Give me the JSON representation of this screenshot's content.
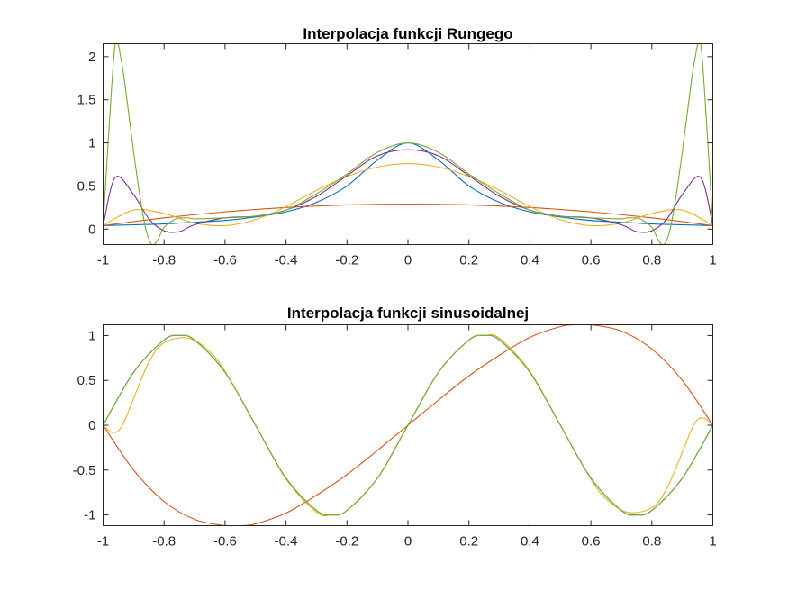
{
  "chart_data": [
    {
      "type": "line",
      "title": "Interpolacja funkcji Rungego",
      "xlabel": "",
      "ylabel": "",
      "xlim": [
        -1,
        1
      ],
      "ylim": [
        -0.18,
        2.15
      ],
      "xticks": [
        -1,
        -0.8,
        -0.6,
        -0.4,
        -0.2,
        0,
        0.2,
        0.4,
        0.6,
        0.8,
        1
      ],
      "xtick_labels": [
        "-1",
        "-0.8",
        "-0.6",
        "-0.4",
        "-0.2",
        "0",
        "0.2",
        "0.4",
        "0.6",
        "0.8",
        "1"
      ],
      "yticks": [
        0,
        0.5,
        1,
        1.5,
        2
      ],
      "ytick_labels": [
        "0",
        "0.5",
        "1",
        "1.5",
        "2"
      ],
      "grid": false,
      "series": [
        {
          "color": "#0072BD",
          "x": [
            -1,
            -0.9,
            -0.8,
            -0.7,
            -0.6,
            -0.5,
            -0.4,
            -0.3,
            -0.2,
            -0.1,
            0,
            0.1,
            0.2,
            0.3,
            0.4,
            0.5,
            0.6,
            0.7,
            0.8,
            0.9,
            1
          ],
          "y": [
            0.04,
            0.05,
            0.06,
            0.08,
            0.1,
            0.14,
            0.2,
            0.31,
            0.5,
            0.8,
            1.0,
            0.8,
            0.5,
            0.31,
            0.2,
            0.14,
            0.1,
            0.08,
            0.06,
            0.05,
            0.04
          ]
        },
        {
          "color": "#D95319",
          "x": [
            -1,
            -0.8,
            -0.6,
            -0.4,
            -0.2,
            0,
            0.2,
            0.4,
            0.6,
            0.8,
            1
          ],
          "y": [
            0.04,
            0.13,
            0.2,
            0.25,
            0.28,
            0.29,
            0.28,
            0.25,
            0.2,
            0.13,
            0.04
          ]
        },
        {
          "color": "#EDB120",
          "x": [
            -1,
            -0.9,
            -0.8,
            -0.7,
            -0.6,
            -0.5,
            -0.4,
            -0.3,
            -0.2,
            -0.1,
            0,
            0.1,
            0.2,
            0.3,
            0.4,
            0.5,
            0.6,
            0.7,
            0.8,
            0.9,
            1
          ],
          "y": [
            0.04,
            0.22,
            0.18,
            0.07,
            0.04,
            0.11,
            0.26,
            0.45,
            0.61,
            0.72,
            0.76,
            0.72,
            0.61,
            0.45,
            0.26,
            0.11,
            0.04,
            0.07,
            0.18,
            0.22,
            0.04
          ]
        },
        {
          "color": "#7E2F8E",
          "x": [
            -1,
            -0.96,
            -0.9,
            -0.85,
            -0.8,
            -0.75,
            -0.7,
            -0.6,
            -0.5,
            -0.4,
            -0.3,
            -0.2,
            -0.1,
            0,
            0.1,
            0.2,
            0.3,
            0.4,
            0.5,
            0.6,
            0.7,
            0.75,
            0.8,
            0.85,
            0.9,
            0.96,
            1
          ],
          "y": [
            0.04,
            0.6,
            0.4,
            0.12,
            -0.02,
            -0.03,
            0.05,
            0.13,
            0.15,
            0.22,
            0.38,
            0.62,
            0.85,
            0.92,
            0.85,
            0.62,
            0.38,
            0.22,
            0.15,
            0.13,
            0.05,
            -0.03,
            -0.02,
            0.12,
            0.4,
            0.6,
            0.04
          ]
        },
        {
          "color": "#77AC30",
          "x": [
            -1,
            -0.98,
            -0.96,
            -0.94,
            -0.92,
            -0.9,
            -0.88,
            -0.86,
            -0.84,
            -0.82,
            -0.8,
            -0.76,
            -0.72,
            -0.7,
            -0.6,
            -0.5,
            -0.4,
            -0.3,
            -0.2,
            -0.1,
            0,
            0.1,
            0.2,
            0.3,
            0.4,
            0.5,
            0.6,
            0.7,
            0.72,
            0.76,
            0.8,
            0.82,
            0.84,
            0.86,
            0.88,
            0.9,
            0.92,
            0.94,
            0.96,
            0.98,
            1
          ],
          "y": [
            0.04,
            1.2,
            2.15,
            1.95,
            1.45,
            0.9,
            0.4,
            0.0,
            -0.18,
            -0.12,
            0.02,
            0.12,
            0.13,
            0.12,
            0.13,
            0.15,
            0.22,
            0.41,
            0.64,
            0.89,
            1.0,
            0.89,
            0.64,
            0.41,
            0.22,
            0.15,
            0.13,
            0.12,
            0.13,
            0.12,
            0.02,
            -0.12,
            -0.18,
            0.0,
            0.4,
            0.9,
            1.45,
            1.95,
            2.15,
            1.2,
            0.04
          ]
        }
      ]
    },
    {
      "type": "line",
      "title": "Interpolacja funkcji sinusoidalnej",
      "xlabel": "",
      "ylabel": "",
      "xlim": [
        -1,
        1
      ],
      "ylim": [
        -1.12,
        1.12
      ],
      "xticks": [
        -1,
        -0.8,
        -0.6,
        -0.4,
        -0.2,
        0,
        0.2,
        0.4,
        0.6,
        0.8,
        1
      ],
      "xtick_labels": [
        "-1",
        "-0.8",
        "-0.6",
        "-0.4",
        "-0.2",
        "0",
        "0.2",
        "0.4",
        "0.6",
        "0.8",
        "1"
      ],
      "yticks": [
        -1,
        -0.5,
        0,
        0.5,
        1
      ],
      "ytick_labels": [
        "-1",
        "-0.5",
        "0",
        "0.5",
        "1"
      ],
      "grid": false,
      "series": [
        {
          "color": "#0072BD",
          "x": [
            -1,
            -0.9,
            -0.8,
            -0.75,
            -0.7,
            -0.6,
            -0.5,
            -0.4,
            -0.3,
            -0.25,
            -0.2,
            -0.1,
            0,
            0.1,
            0.2,
            0.25,
            0.3,
            0.4,
            0.5,
            0.6,
            0.7,
            0.75,
            0.8,
            0.9,
            1
          ],
          "y": [
            0,
            0.59,
            0.95,
            1.0,
            0.95,
            0.59,
            0,
            -0.59,
            -0.95,
            -1.0,
            -0.95,
            -0.59,
            0,
            0.59,
            0.95,
            1.0,
            0.95,
            0.59,
            0,
            -0.59,
            -0.95,
            -1.0,
            -0.95,
            -0.59,
            0
          ]
        },
        {
          "color": "#D95319",
          "x": [
            -1,
            -0.9,
            -0.8,
            -0.7,
            -0.6,
            -0.55,
            -0.5,
            -0.4,
            -0.3,
            -0.2,
            -0.1,
            0,
            0.1,
            0.2,
            0.3,
            0.4,
            0.5,
            0.55,
            0.6,
            0.7,
            0.8,
            0.9,
            1
          ],
          "y": [
            0,
            -0.5,
            -0.85,
            -1.05,
            -1.12,
            -1.12,
            -1.1,
            -0.98,
            -0.78,
            -0.55,
            -0.28,
            0,
            0.28,
            0.55,
            0.78,
            0.98,
            1.1,
            1.12,
            1.12,
            1.05,
            0.85,
            0.5,
            0
          ]
        },
        {
          "color": "#EDB120",
          "x": [
            -1,
            -0.97,
            -0.94,
            -0.9,
            -0.85,
            -0.8,
            -0.72,
            -0.65,
            -0.6,
            -0.5,
            -0.4,
            -0.3,
            -0.25,
            -0.2,
            -0.1,
            0,
            0.1,
            0.2,
            0.25,
            0.3,
            0.4,
            0.5,
            0.6,
            0.65,
            0.72,
            0.8,
            0.85,
            0.9,
            0.94,
            0.97,
            1
          ],
          "y": [
            0,
            -0.08,
            -0.02,
            0.3,
            0.7,
            0.92,
            0.97,
            0.82,
            0.6,
            0.0,
            -0.6,
            -0.97,
            -1.0,
            -0.95,
            -0.59,
            0,
            0.59,
            0.95,
            1.0,
            0.97,
            0.6,
            0.0,
            -0.6,
            -0.82,
            -0.97,
            -0.92,
            -0.7,
            -0.3,
            0.02,
            0.08,
            0
          ]
        },
        {
          "color": "#77AC30",
          "x": [
            -1,
            -0.9,
            -0.8,
            -0.75,
            -0.7,
            -0.6,
            -0.5,
            -0.4,
            -0.3,
            -0.25,
            -0.2,
            -0.1,
            0,
            0.1,
            0.2,
            0.25,
            0.3,
            0.4,
            0.5,
            0.6,
            0.7,
            0.75,
            0.8,
            0.9,
            1
          ],
          "y": [
            0,
            0.59,
            0.95,
            1.0,
            0.95,
            0.59,
            0,
            -0.59,
            -0.95,
            -1.0,
            -0.95,
            -0.59,
            0,
            0.59,
            0.95,
            1.0,
            0.95,
            0.59,
            0,
            -0.59,
            -0.95,
            -1.0,
            -0.95,
            -0.59,
            0
          ]
        }
      ]
    }
  ]
}
